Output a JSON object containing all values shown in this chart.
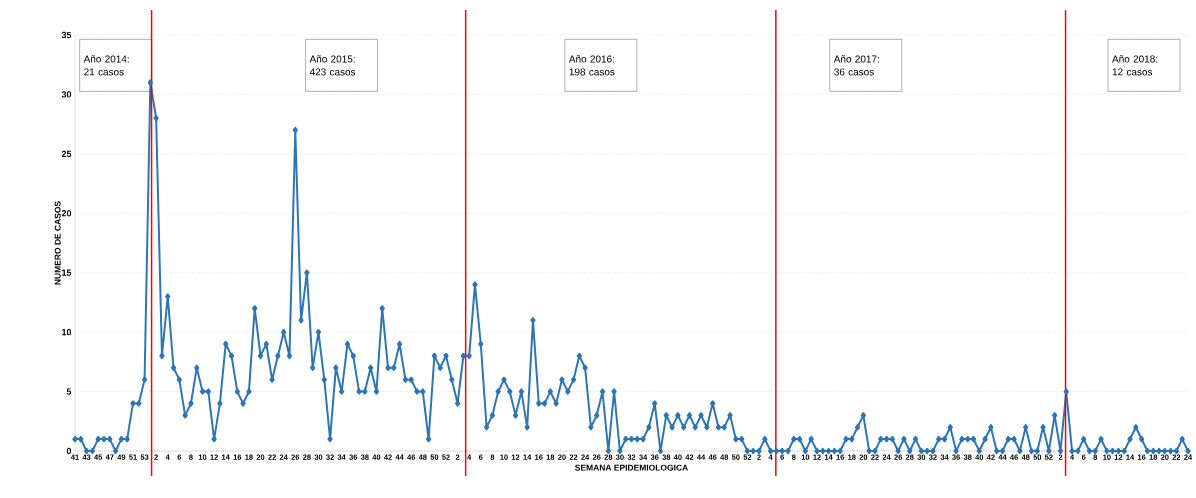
{
  "chart_data": {
    "type": "line",
    "xlabel": "SEMANA EPIDEMIOLOGICA",
    "ylabel": "NUMERO DE CASOS",
    "categories": [
      "41",
      null,
      "43",
      null,
      "45",
      null,
      "47",
      null,
      "49",
      null,
      "51",
      null,
      "53",
      null,
      "2",
      null,
      "4",
      null,
      "6",
      null,
      "8",
      null,
      "10",
      null,
      "12",
      null,
      "14",
      null,
      "16",
      null,
      "18",
      null,
      "20",
      null,
      "22",
      null,
      "24",
      null,
      "26",
      null,
      "28",
      null,
      "30",
      null,
      "32",
      null,
      "34",
      null,
      "36",
      null,
      "38",
      null,
      "40",
      null,
      "42",
      null,
      "44",
      null,
      "46",
      null,
      "48",
      null,
      "50",
      null,
      "52",
      null,
      "2",
      null,
      "4",
      null,
      "6",
      null,
      "8",
      null,
      "10",
      null,
      "12",
      null,
      "14",
      null,
      "16",
      null,
      "18",
      null,
      "20",
      null,
      "22",
      null,
      "24",
      null,
      "26",
      null,
      "28",
      null,
      "30",
      null,
      "32",
      null,
      "34",
      null,
      "36",
      null,
      "38",
      null,
      "40",
      null,
      "42",
      null,
      "44",
      null,
      "46",
      null,
      "48",
      null,
      "50",
      null,
      "52",
      null,
      "2",
      null,
      "4",
      null,
      "6",
      null,
      "8",
      null,
      "10",
      null,
      "12",
      null,
      "14",
      null,
      "16",
      null,
      "18",
      null,
      "20",
      null,
      "22",
      null,
      "24",
      null,
      "26",
      null,
      "28",
      null,
      "30",
      null,
      "32",
      null,
      "34",
      null,
      "36",
      null,
      "38",
      null,
      "40",
      null,
      "42",
      null,
      "44",
      null,
      "46",
      null,
      "48",
      null,
      "50",
      null,
      "52",
      null,
      "2",
      null,
      "4",
      null,
      "6",
      null,
      "8",
      null,
      "10",
      null,
      "12",
      null,
      "14",
      null,
      "16",
      null,
      "18",
      null,
      "20",
      null,
      "22",
      null,
      "24"
    ],
    "values": [
      1,
      1,
      0,
      0,
      1,
      1,
      1,
      0,
      1,
      1,
      4,
      4,
      6,
      31,
      28,
      8,
      13,
      7,
      6,
      3,
      4,
      7,
      5,
      5,
      1,
      4,
      9,
      8,
      5,
      4,
      5,
      12,
      8,
      9,
      6,
      8,
      10,
      8,
      27,
      11,
      15,
      7,
      10,
      6,
      1,
      7,
      5,
      9,
      8,
      5,
      5,
      7,
      5,
      12,
      7,
      7,
      9,
      6,
      6,
      5,
      5,
      1,
      8,
      7,
      8,
      6,
      4,
      8,
      8,
      14,
      9,
      2,
      3,
      5,
      6,
      5,
      3,
      5,
      2,
      11,
      4,
      4,
      5,
      4,
      6,
      5,
      6,
      8,
      7,
      2,
      3,
      5,
      0,
      5,
      0,
      1,
      1,
      1,
      1,
      2,
      4,
      0,
      3,
      2,
      3,
      2,
      3,
      2,
      3,
      2,
      4,
      2,
      2,
      3,
      1,
      1,
      0,
      0,
      0,
      1,
      0,
      0,
      0,
      0,
      1,
      1,
      0,
      1,
      0,
      0,
      0,
      0,
      0,
      1,
      1,
      2,
      3,
      0,
      0,
      1,
      1,
      1,
      0,
      1,
      0,
      1,
      0,
      0,
      0,
      1,
      1,
      2,
      0,
      1,
      1,
      1,
      0,
      1,
      2,
      0,
      0,
      1,
      1,
      0,
      2,
      0,
      0,
      2,
      0,
      3,
      0,
      5,
      0,
      0,
      1,
      0,
      0,
      1,
      0,
      0,
      0,
      0,
      1,
      2,
      1,
      0,
      0,
      0,
      0,
      0,
      0,
      1,
      0
    ],
    "color": "#2e75b6",
    "marker": "diamond",
    "line_style": "solid",
    "ylim": [
      0,
      35
    ],
    "yticks": [
      0,
      5,
      10,
      15,
      20,
      25,
      30,
      35
    ],
    "grid": "y",
    "annotations": [
      "Año 2014:",
      "21 casos",
      "Año 2015:",
      "423  casos",
      "Año 2016:",
      "198 casos",
      "Año 2017:",
      "36 casos",
      "Año 2018:",
      "12 casos"
    ]
  }
}
